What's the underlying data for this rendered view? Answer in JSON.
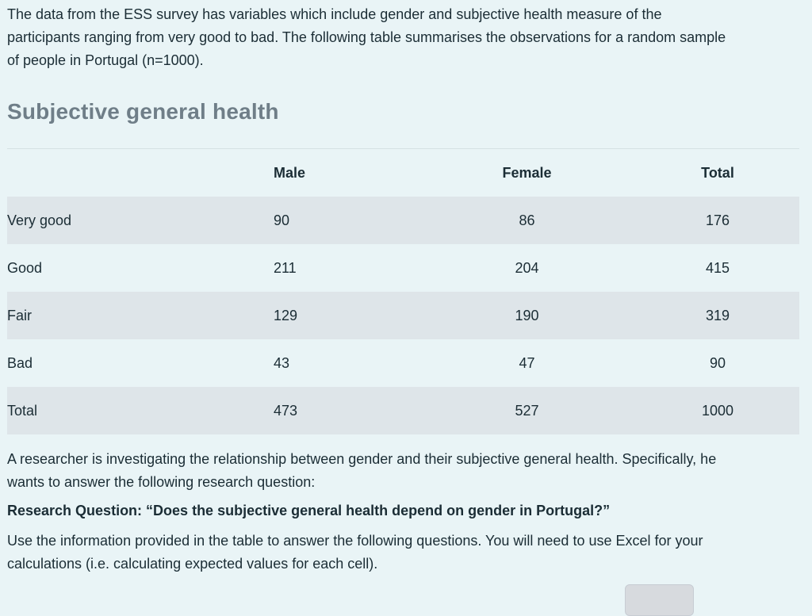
{
  "colors": {
    "page_background": "#e9f4f6",
    "alt_row_background": "#dee5e9",
    "divider": "#d5e1e4",
    "body_text": "#1b2d35",
    "heading_text": "#6f7e88"
  },
  "intro": {
    "lines": [
      "The data from the ESS survey has variables which include gender and subjective health measure of the",
      "participants ranging from very good to bad. The following table summarises the observations for a random sample",
      "of people in Portugal (n=1000)."
    ]
  },
  "section": {
    "title": "Subjective general health"
  },
  "table": {
    "header": [
      "",
      "Male",
      "Female",
      "Total"
    ],
    "rows": [
      {
        "label": "Very good",
        "male": "90",
        "female": "86",
        "total": "176"
      },
      {
        "label": "Good",
        "male": "211",
        "female": "204",
        "total": "415"
      },
      {
        "label": "Fair",
        "male": "129",
        "female": "190",
        "total": "319"
      },
      {
        "label": "Bad",
        "male": "43",
        "female": "47",
        "total": "90"
      },
      {
        "label": "Total",
        "male": "473",
        "female": "527",
        "total": "1000"
      }
    ]
  },
  "researcher": {
    "lines": [
      "A researcher is investigating the relationship between gender and their subjective general health. Specifically, he",
      "wants to answer the following research question:"
    ]
  },
  "research_question": "Research Question: “Does the subjective general health depend on gender in Portugal?”",
  "instructions": {
    "lines": [
      "Use the information provided in the table to answer the following questions. You will need to use Excel for your",
      "calculations (i.e. calculating expected values for each cell)."
    ]
  }
}
